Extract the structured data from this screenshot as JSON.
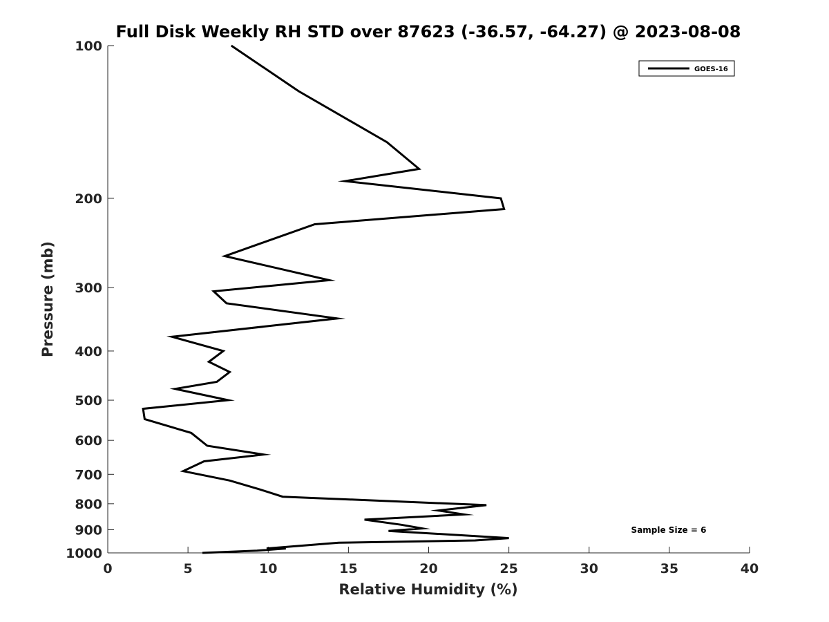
{
  "chart_data": {
    "type": "line",
    "title": "Full Disk Weekly RH STD over 87623 (-36.57, -64.27) @ 2023-08-08",
    "xlabel": "Relative Humidity (%)",
    "ylabel": "Pressure (mb)",
    "xlim": [
      0,
      40
    ],
    "ylim": [
      100,
      1000
    ],
    "yscale": "log",
    "y_reversed": true,
    "grid": false,
    "legend_position": "top-right",
    "x_ticks": [
      "0",
      "5",
      "10",
      "15",
      "20",
      "25",
      "30",
      "35",
      "40"
    ],
    "y_ticks": [
      "100",
      "200",
      "300",
      "400",
      "500",
      "600",
      "700",
      "800",
      "900",
      "1000"
    ],
    "series": [
      {
        "name": "GOES-16",
        "color": "#000000",
        "x": [
          7.7,
          11.9,
          17.4,
          19.4,
          14.8,
          24.5,
          24.7,
          12.9,
          9.6,
          7.3,
          13.8,
          6.6,
          7.4,
          14.3,
          4.0,
          7.2,
          6.3,
          7.6,
          6.8,
          4.2,
          7.5,
          2.2,
          2.3,
          5.2,
          6.2,
          9.7,
          6.0,
          4.7,
          7.6,
          9.5,
          10.9,
          23.6,
          20.6,
          22.2,
          16.0,
          18.3,
          19.6,
          17.5,
          25.0,
          22.9,
          14.4,
          9.9,
          11.1,
          9.3,
          5.9
        ],
        "y": [
          100,
          123,
          155,
          175,
          185,
          200,
          210,
          225,
          245,
          260,
          290,
          305,
          322,
          345,
          375,
          400,
          420,
          440,
          460,
          475,
          500,
          520,
          545,
          580,
          615,
          640,
          660,
          690,
          720,
          750,
          775,
          805,
          825,
          840,
          860,
          880,
          895,
          905,
          935,
          945,
          955,
          980,
          980,
          990,
          1000
        ]
      }
    ],
    "annotation": "Sample Size = 6"
  }
}
